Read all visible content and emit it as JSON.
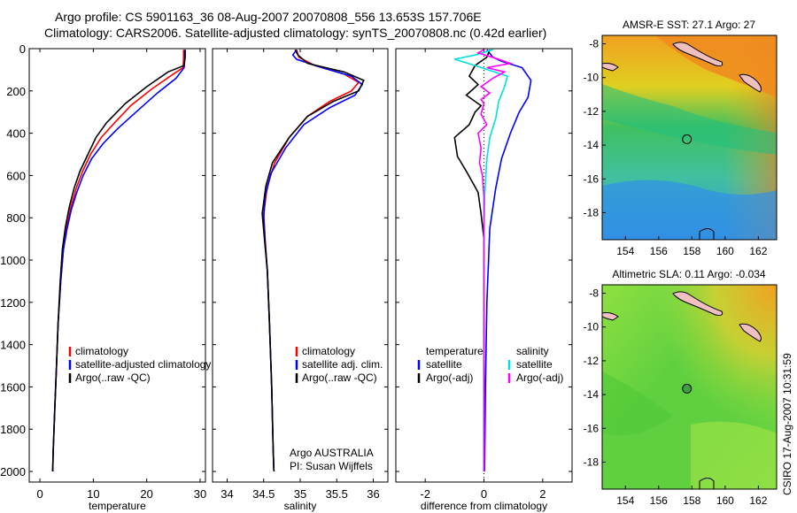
{
  "title": {
    "line1": "Argo profile: CS 5901163_36 08-Aug-2007 20070808_556 13.653S 157.706E",
    "line2": "Climatology: CARS2006. Satellite-adjusted climatology: synTS_20070808.nc (0.42d earlier)"
  },
  "stamp": "CSIRO 17-Aug-2007 10:31:59",
  "colors": {
    "clim": "#ff0000",
    "sat": "#0000ff",
    "argo": "#000000",
    "sal_sat": "#00e0e0",
    "sal_argo": "#ff00ff"
  },
  "chart_data": [
    {
      "type": "line",
      "id": "temperature",
      "xlabel": "temperature",
      "xlim": [
        -2,
        31
      ],
      "ylim": [
        0,
        2050
      ],
      "xticks": [
        0,
        10,
        20,
        30
      ],
      "yticks": [
        0,
        200,
        400,
        600,
        800,
        1000,
        1200,
        1400,
        1600,
        1800,
        2000
      ],
      "legend": [
        "climatology",
        "satellite-adjusted climatology",
        "Argo(..raw -QC)"
      ],
      "series": [
        {
          "name": "climatology",
          "color": "clim",
          "points": [
            [
              26.9,
              5
            ],
            [
              26.9,
              50
            ],
            [
              26.8,
              90
            ],
            [
              25,
              120
            ],
            [
              21,
              190
            ],
            [
              17,
              270
            ],
            [
              14,
              350
            ],
            [
              11.5,
              420
            ],
            [
              9.5,
              500
            ],
            [
              8,
              580
            ],
            [
              6.8,
              660
            ],
            [
              5.8,
              750
            ],
            [
              5,
              840
            ],
            [
              4.4,
              950
            ],
            [
              3.9,
              1100
            ],
            [
              3.4,
              1300
            ],
            [
              3.1,
              1500
            ],
            [
              2.8,
              1700
            ],
            [
              2.5,
              1900
            ],
            [
              2.4,
              2000
            ]
          ]
        },
        {
          "name": "satellite",
          "color": "sat",
          "points": [
            [
              27.1,
              5
            ],
            [
              27.1,
              50
            ],
            [
              27.0,
              90
            ],
            [
              25.5,
              140
            ],
            [
              22,
              210
            ],
            [
              18,
              300
            ],
            [
              14.5,
              380
            ],
            [
              11.8,
              450
            ],
            [
              9.7,
              520
            ],
            [
              8.1,
              600
            ],
            [
              6.9,
              680
            ],
            [
              5.9,
              760
            ],
            [
              5.1,
              850
            ],
            [
              4.4,
              950
            ],
            [
              3.9,
              1100
            ],
            [
              3.4,
              1300
            ],
            [
              3.1,
              1500
            ],
            [
              2.8,
              1700
            ],
            [
              2.5,
              1900
            ],
            [
              2.4,
              2000
            ]
          ]
        },
        {
          "name": "argo",
          "color": "argo",
          "points": [
            [
              27.2,
              5
            ],
            [
              27.2,
              40
            ],
            [
              27.0,
              80
            ],
            [
              24,
              110
            ],
            [
              20,
              180
            ],
            [
              16,
              260
            ],
            [
              12.5,
              350
            ],
            [
              10.5,
              420
            ],
            [
              9,
              500
            ],
            [
              7.5,
              580
            ],
            [
              6.4,
              660
            ],
            [
              5.5,
              750
            ],
            [
              4.8,
              840
            ],
            [
              4.2,
              950
            ],
            [
              3.8,
              1100
            ],
            [
              3.4,
              1300
            ],
            [
              3.1,
              1500
            ],
            [
              2.8,
              1700
            ],
            [
              2.5,
              1900
            ],
            [
              2.4,
              2000
            ]
          ]
        }
      ]
    },
    {
      "type": "line",
      "id": "salinity",
      "xlabel": "salinity",
      "xlim": [
        33.8,
        36.2
      ],
      "ylim": [
        0,
        2050
      ],
      "xticks": [
        34,
        34.5,
        35,
        35.5,
        36
      ],
      "legend": [
        "climatology",
        "satellite adj. clim.",
        "Argo(..raw -QC)"
      ],
      "annotation": [
        "Argo AUSTRALIA",
        "PI: Susan Wijffels"
      ],
      "series": [
        {
          "name": "climatology",
          "color": "clim",
          "points": [
            [
              34.95,
              5
            ],
            [
              34.98,
              40
            ],
            [
              35.2,
              80
            ],
            [
              35.6,
              120
            ],
            [
              35.8,
              160
            ],
            [
              35.7,
              200
            ],
            [
              35.4,
              250
            ],
            [
              35.1,
              320
            ],
            [
              34.85,
              420
            ],
            [
              34.65,
              540
            ],
            [
              34.55,
              650
            ],
            [
              34.5,
              780
            ],
            [
              34.52,
              900
            ],
            [
              34.55,
              1050
            ],
            [
              34.58,
              1300
            ],
            [
              34.61,
              1600
            ],
            [
              34.63,
              1900
            ],
            [
              34.64,
              2000
            ]
          ]
        },
        {
          "name": "satellite",
          "color": "sat",
          "points": [
            [
              34.95,
              5
            ],
            [
              34.9,
              30
            ],
            [
              34.95,
              50
            ],
            [
              35.3,
              90
            ],
            [
              35.7,
              130
            ],
            [
              35.85,
              170
            ],
            [
              35.75,
              220
            ],
            [
              35.4,
              280
            ],
            [
              35.05,
              360
            ],
            [
              34.8,
              470
            ],
            [
              34.6,
              590
            ],
            [
              34.52,
              700
            ],
            [
              34.5,
              800
            ],
            [
              34.52,
              920
            ],
            [
              34.55,
              1050
            ],
            [
              34.58,
              1300
            ],
            [
              34.61,
              1600
            ],
            [
              34.63,
              1900
            ],
            [
              34.64,
              2000
            ]
          ]
        },
        {
          "name": "argo",
          "color": "argo",
          "points": [
            [
              34.93,
              5
            ],
            [
              34.97,
              30
            ],
            [
              35.1,
              70
            ],
            [
              35.6,
              110
            ],
            [
              35.87,
              150
            ],
            [
              35.8,
              200
            ],
            [
              35.45,
              250
            ],
            [
              35.1,
              320
            ],
            [
              34.85,
              420
            ],
            [
              34.62,
              540
            ],
            [
              34.53,
              650
            ],
            [
              34.48,
              780
            ],
            [
              34.51,
              900
            ],
            [
              34.55,
              1050
            ],
            [
              34.58,
              1300
            ],
            [
              34.61,
              1600
            ],
            [
              34.63,
              1900
            ],
            [
              34.64,
              2000
            ]
          ]
        }
      ]
    },
    {
      "type": "line",
      "id": "difference",
      "xlabel": "difference from climatology",
      "xlim": [
        -3,
        3
      ],
      "ylim": [
        0,
        2050
      ],
      "xticks": [
        -2,
        0,
        2
      ],
      "legend_temp_title": "temperature",
      "legend_sal_title": "salinity",
      "legend_temp": [
        "satellite",
        "Argo(-adj)"
      ],
      "legend_sal": [
        "satellite",
        "Argo(-adj)"
      ],
      "series": [
        {
          "name": "temp satellite",
          "color": "sat",
          "points": [
            [
              0.1,
              5
            ],
            [
              0.3,
              40
            ],
            [
              0.6,
              60
            ],
            [
              1.3,
              90
            ],
            [
              1.6,
              150
            ],
            [
              1.5,
              230
            ],
            [
              1.2,
              300
            ],
            [
              0.9,
              400
            ],
            [
              0.6,
              520
            ],
            [
              0.4,
              660
            ],
            [
              0.2,
              850
            ],
            [
              0.1,
              1200
            ],
            [
              0.05,
              1600
            ],
            [
              0.02,
              2000
            ]
          ]
        },
        {
          "name": "temp argo",
          "color": "argo",
          "points": [
            [
              0.2,
              5
            ],
            [
              0.1,
              40
            ],
            [
              -0.3,
              80
            ],
            [
              -0.5,
              130
            ],
            [
              -0.2,
              170
            ],
            [
              -0.6,
              220
            ],
            [
              -0.1,
              270
            ],
            [
              -0.3,
              300
            ],
            [
              -0.5,
              360
            ],
            [
              -1.0,
              420
            ],
            [
              -0.9,
              510
            ],
            [
              -0.6,
              580
            ],
            [
              -0.2,
              680
            ],
            [
              -0.1,
              780
            ],
            [
              0,
              900
            ],
            [
              0,
              1100
            ],
            [
              0,
              1400
            ],
            [
              0,
              1700
            ],
            [
              0,
              2000
            ]
          ]
        },
        {
          "name": "sal satellite",
          "color": "sal_sat",
          "points": [
            [
              0.3,
              5
            ],
            [
              -0.3,
              30
            ],
            [
              -1.0,
              50
            ],
            [
              -0.3,
              80
            ],
            [
              0.8,
              130
            ],
            [
              0.7,
              180
            ],
            [
              0.5,
              250
            ],
            [
              0.4,
              330
            ],
            [
              0.2,
              420
            ],
            [
              0.1,
              520
            ],
            [
              0.02,
              700
            ],
            [
              0,
              900
            ],
            [
              0,
              1200
            ],
            [
              0,
              1600
            ],
            [
              0,
              2000
            ]
          ]
        },
        {
          "name": "sal argo",
          "color": "sal_argo",
          "points": [
            [
              0,
              5
            ],
            [
              -0.2,
              20
            ],
            [
              0.5,
              50
            ],
            [
              0.9,
              70
            ],
            [
              0.1,
              90
            ],
            [
              0.7,
              110
            ],
            [
              0.3,
              140
            ],
            [
              -0.1,
              180
            ],
            [
              0.2,
              210
            ],
            [
              -0.1,
              240
            ],
            [
              0,
              260
            ],
            [
              -0.1,
              310
            ],
            [
              0.1,
              360
            ],
            [
              -0.2,
              400
            ],
            [
              -0.1,
              470
            ],
            [
              -0.15,
              540
            ],
            [
              -0.05,
              600
            ],
            [
              0,
              700
            ],
            [
              0,
              900
            ],
            [
              0,
              1200
            ],
            [
              0,
              1600
            ],
            [
              0,
              2000
            ]
          ]
        }
      ]
    },
    {
      "type": "heatmap",
      "id": "sst-map",
      "title": "AMSR-E SST: 27.1 Argo: 27",
      "xticks": [
        154,
        156,
        158,
        160,
        162
      ],
      "yticks": [
        -8,
        -10,
        -12,
        -14,
        -16,
        -18
      ],
      "xlim": [
        152.6,
        163.1
      ],
      "ylim": [
        -19.6,
        -7.5
      ],
      "marker": [
        157.7,
        -13.65
      ]
    },
    {
      "type": "heatmap",
      "id": "sla-map",
      "title": "Altimetric SLA: 0.11 Argo: -0.034",
      "xticks": [
        154,
        156,
        158,
        160,
        162
      ],
      "yticks": [
        -8,
        -10,
        -12,
        -14,
        -16,
        -18
      ],
      "xlim": [
        152.6,
        163.1
      ],
      "ylim": [
        -19.6,
        -7.5
      ],
      "marker": [
        157.7,
        -13.65
      ]
    }
  ]
}
